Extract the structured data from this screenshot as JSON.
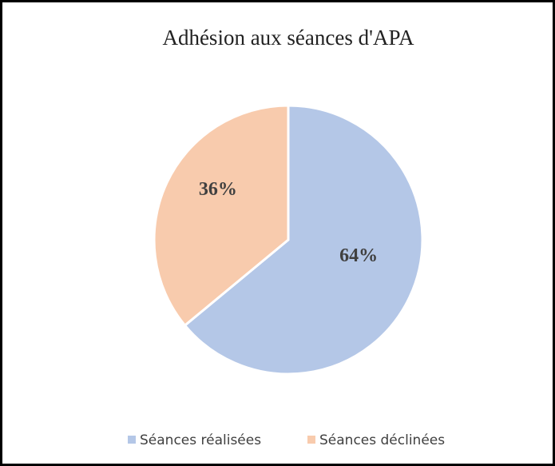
{
  "chart_data": {
    "type": "pie",
    "title": "Adhésion aux séances d'APA",
    "categories": [
      "Séances réalisées",
      "Séances déclinées"
    ],
    "values": [
      64,
      36
    ],
    "value_labels": [
      "64%",
      "36%"
    ],
    "colors": [
      "#b4c7e7",
      "#f8cbad"
    ]
  }
}
